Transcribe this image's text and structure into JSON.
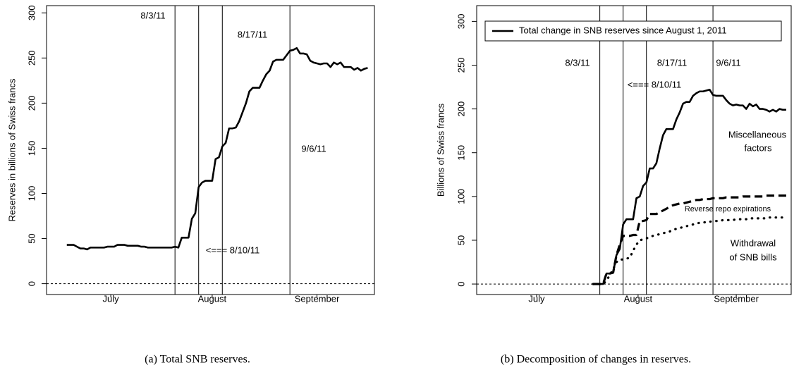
{
  "chart_data": [
    {
      "type": "line",
      "y_label": "Reserves in billions of Swiss francs",
      "caption": "(a) Total SNB reserves.",
      "x": [
        183,
        184,
        185,
        186,
        187,
        188,
        189,
        190,
        191,
        192,
        193,
        194,
        195,
        196,
        197,
        198,
        199,
        200,
        201,
        202,
        203,
        204,
        205,
        206,
        207,
        208,
        209,
        210,
        211,
        212,
        213,
        214,
        215,
        216,
        217,
        218,
        219,
        220,
        221,
        222,
        223,
        224,
        225,
        226,
        227,
        228,
        229,
        230,
        231,
        232,
        233,
        234,
        235,
        236,
        237,
        238,
        239,
        240,
        241,
        242,
        243,
        244,
        245,
        246,
        247,
        248,
        249,
        250,
        251,
        252,
        253,
        254,
        255,
        256,
        257,
        258,
        259,
        260,
        261,
        262,
        263,
        264,
        265,
        266,
        267,
        268,
        269,
        270,
        271,
        272
      ],
      "series": [
        {
          "color": "#000000",
          "dash": "solid",
          "values": [
            43,
            43,
            43,
            41,
            39,
            39,
            38,
            40,
            40,
            40,
            40,
            40,
            41,
            41,
            41,
            43,
            43,
            43,
            42,
            42,
            42,
            42,
            41,
            41,
            40,
            40,
            40,
            40,
            40,
            40,
            40,
            40,
            41,
            40,
            51,
            51,
            51,
            72,
            78,
            107,
            112,
            114,
            114,
            114,
            138,
            140,
            152,
            156,
            172,
            172,
            173,
            180,
            190,
            200,
            213,
            217,
            217,
            217,
            225,
            232,
            236,
            246,
            248,
            248,
            248,
            253,
            258,
            259,
            261,
            255,
            255,
            254,
            247,
            245,
            244,
            243,
            244,
            244,
            240,
            245,
            243,
            245,
            240,
            240,
            240,
            237,
            239,
            236,
            238,
            239
          ]
        }
      ],
      "xlim": [
        177,
        274
      ],
      "ylim": [
        -12,
        308
      ],
      "xticks": [
        {
          "value": 196,
          "label": "July"
        },
        {
          "value": 226,
          "label": "August"
        },
        {
          "value": 257,
          "label": "September"
        }
      ],
      "yticks": [
        0,
        50,
        100,
        150,
        200,
        250,
        300
      ],
      "hline": 0,
      "vlines": [
        {
          "x": 215,
          "label": "8/3/11"
        },
        {
          "x": 222,
          "label": "<=== 8/10/11"
        },
        {
          "x": 229,
          "label": "8/17/11"
        },
        {
          "x": 249,
          "label": "9/6/11"
        }
      ]
    },
    {
      "type": "line",
      "y_label": "Billions of Swiss francs",
      "caption": "(b) Decomposition of changes in reserves.",
      "x": [
        213,
        214,
        215,
        216,
        217,
        218,
        219,
        220,
        221,
        222,
        223,
        224,
        225,
        226,
        227,
        228,
        229,
        230,
        231,
        232,
        233,
        234,
        235,
        236,
        237,
        238,
        239,
        240,
        241,
        242,
        243,
        244,
        245,
        246,
        247,
        248,
        249,
        250,
        251,
        252,
        253,
        254,
        255,
        256,
        257,
        258,
        259,
        260,
        261,
        262,
        263,
        264,
        265,
        266,
        267,
        268,
        269,
        270,
        271
      ],
      "series": [
        {
          "name": "Total change in SNB reserves since August 1, 2011",
          "color": "#000000",
          "dash": "solid",
          "values": [
            0,
            0,
            0,
            0,
            12,
            12,
            13,
            33,
            40,
            68,
            74,
            74,
            74,
            98,
            100,
            112,
            116,
            132,
            132,
            138,
            155,
            170,
            177,
            177,
            177,
            188,
            196,
            206,
            208,
            208,
            215,
            218,
            220,
            220,
            221,
            222,
            216,
            215,
            215,
            215,
            210,
            206,
            204,
            205,
            204,
            204,
            200,
            206,
            203,
            205,
            200,
            200,
            199,
            197,
            199,
            197,
            200,
            199,
            199
          ]
        },
        {
          "color": "#000000",
          "dash": "dashed",
          "values": [
            0,
            0,
            0,
            0,
            12,
            12,
            13,
            33,
            45,
            55,
            55,
            55,
            56,
            56,
            72,
            72,
            73,
            80,
            80,
            80,
            82,
            84,
            86,
            88,
            90,
            91,
            92,
            92,
            93,
            94,
            95,
            96,
            96,
            97,
            97,
            97,
            98,
            98,
            98,
            98,
            99,
            99,
            99,
            99,
            99,
            100,
            100,
            100,
            100,
            100,
            100,
            100,
            101,
            101,
            101,
            101,
            101,
            101,
            101
          ]
        },
        {
          "color": "#000000",
          "dash": "dotted",
          "values": [
            0,
            0,
            0,
            0,
            4,
            10,
            17,
            25,
            28,
            28,
            29,
            30,
            38,
            45,
            50,
            51,
            52,
            54,
            55,
            56,
            57,
            58,
            59,
            60,
            62,
            63,
            64,
            65,
            66,
            67,
            68,
            69,
            70,
            70,
            71,
            71,
            72,
            72,
            72,
            73,
            73,
            73,
            73,
            74,
            74,
            74,
            74,
            75,
            75,
            75,
            75,
            75,
            75,
            76,
            76,
            76,
            76,
            76,
            76
          ]
        }
      ],
      "legend": "top",
      "xlim": [
        178,
        272.5
      ],
      "ylim": [
        -12,
        318
      ],
      "xticks": [
        {
          "value": 196,
          "label": "July"
        },
        {
          "value": 226.5,
          "label": "August"
        },
        {
          "value": 256,
          "label": "September"
        }
      ],
      "yticks": [
        0,
        50,
        100,
        150,
        200,
        250,
        300
      ],
      "hline": 0,
      "vlines": [
        {
          "x": 215,
          "label": "8/3/11"
        },
        {
          "x": 222,
          "label": "<=== 8/10/11"
        },
        {
          "x": 229,
          "label": "8/17/11"
        },
        {
          "x": 249,
          "label": "9/6/11"
        }
      ],
      "annotations": [
        "Miscellaneous",
        "factors",
        "Reverse repo expirations",
        "Withdrawal",
        "of SNB bills"
      ]
    }
  ]
}
